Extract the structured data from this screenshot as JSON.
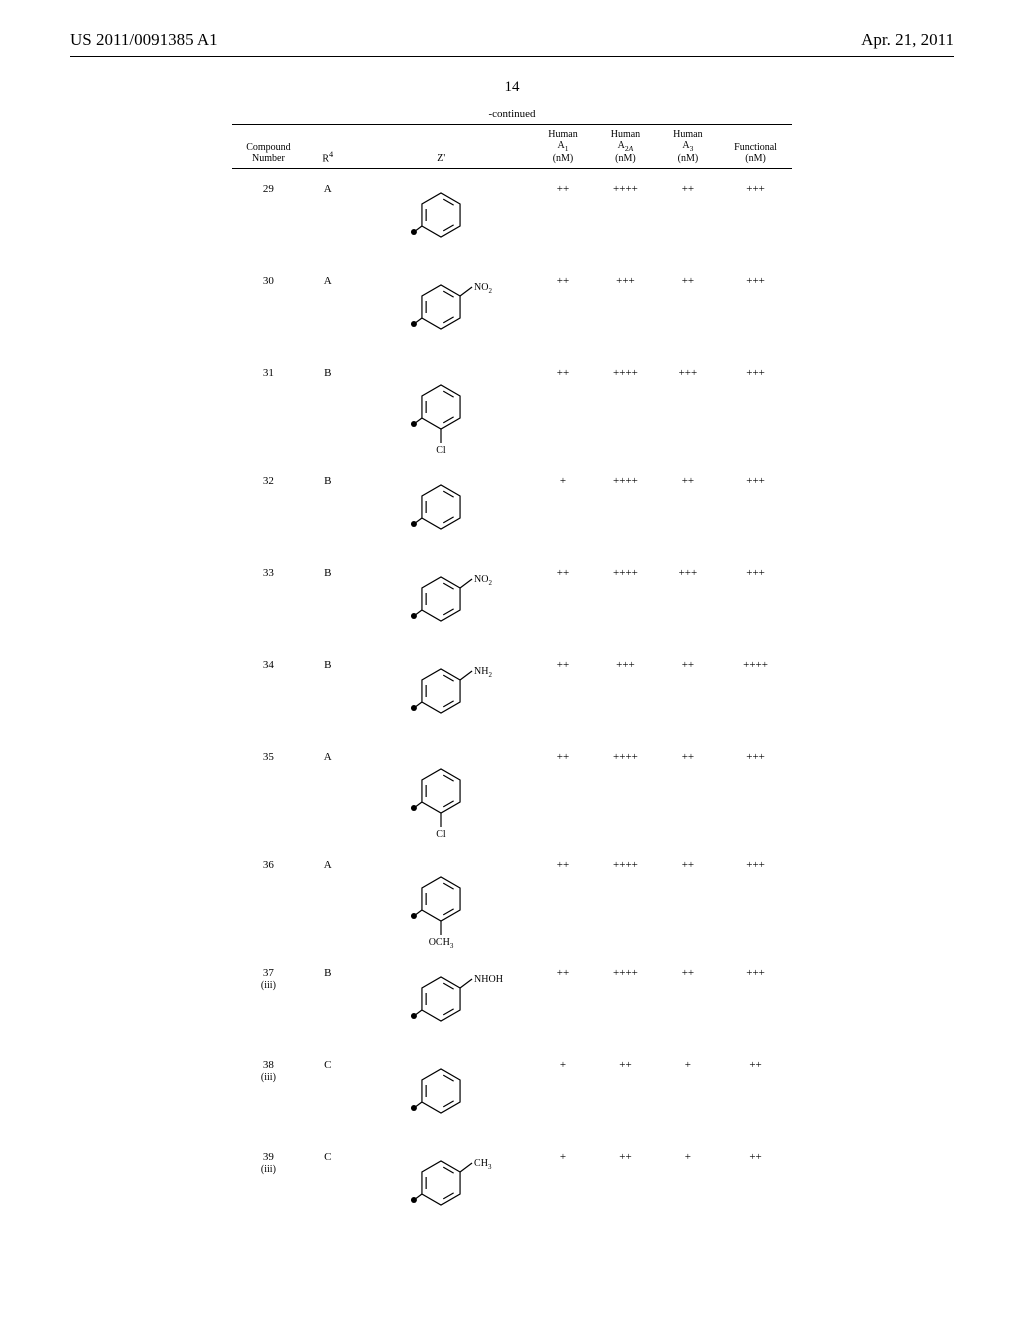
{
  "header": {
    "left": "US 2011/0091385 A1",
    "right": "Apr. 21, 2011"
  },
  "page_number": "14",
  "table": {
    "continued_label": "-continued",
    "columns": {
      "compound": "Compound\nNumber",
      "r4": "R⁴",
      "z": "Z'",
      "a1": "Human\nA₁\n(nM)",
      "a2a": "Human\nA₂ₐ\n(nM)",
      "a3": "Human\nA₃\n(nM)",
      "functional": "Functional\n(nM)"
    },
    "rows": [
      {
        "compound": "29",
        "sub": "",
        "r4": "A",
        "z_type": "phenyl",
        "z_sub": "",
        "z_subpos": "",
        "a1": "++",
        "a2a": "++++",
        "a3": "++",
        "func": "+++"
      },
      {
        "compound": "30",
        "sub": "",
        "r4": "A",
        "z_type": "phenyl",
        "z_sub": "NO₂",
        "z_subpos": "para",
        "a1": "++",
        "a2a": "+++",
        "a3": "++",
        "func": "+++"
      },
      {
        "compound": "31",
        "sub": "",
        "r4": "B",
        "z_type": "phenyl",
        "z_sub": "Cl",
        "z_subpos": "ortho",
        "a1": "++",
        "a2a": "++++",
        "a3": "+++",
        "func": "+++"
      },
      {
        "compound": "32",
        "sub": "",
        "r4": "B",
        "z_type": "phenyl",
        "z_sub": "",
        "z_subpos": "",
        "a1": "+",
        "a2a": "++++",
        "a3": "++",
        "func": "+++"
      },
      {
        "compound": "33",
        "sub": "",
        "r4": "B",
        "z_type": "phenyl",
        "z_sub": "NO₂",
        "z_subpos": "para",
        "a1": "++",
        "a2a": "++++",
        "a3": "+++",
        "func": "+++"
      },
      {
        "compound": "34",
        "sub": "",
        "r4": "B",
        "z_type": "phenyl",
        "z_sub": "NH₂",
        "z_subpos": "para",
        "a1": "++",
        "a2a": "+++",
        "a3": "++",
        "func": "++++"
      },
      {
        "compound": "35",
        "sub": "",
        "r4": "A",
        "z_type": "phenyl",
        "z_sub": "Cl",
        "z_subpos": "ortho",
        "a1": "++",
        "a2a": "++++",
        "a3": "++",
        "func": "+++"
      },
      {
        "compound": "36",
        "sub": "",
        "r4": "A",
        "z_type": "phenyl",
        "z_sub": "OCH₃",
        "z_subpos": "ortho",
        "a1": "++",
        "a2a": "++++",
        "a3": "++",
        "func": "+++"
      },
      {
        "compound": "37",
        "sub": "(iii)",
        "r4": "B",
        "z_type": "phenyl",
        "z_sub": "NHOH",
        "z_subpos": "para",
        "a1": "++",
        "a2a": "++++",
        "a3": "++",
        "func": "+++"
      },
      {
        "compound": "38",
        "sub": "(iii)",
        "r4": "C",
        "z_type": "phenyl",
        "z_sub": "",
        "z_subpos": "",
        "a1": "+",
        "a2a": "++",
        "a3": "+",
        "func": "++"
      },
      {
        "compound": "39",
        "sub": "(iii)",
        "r4": "C",
        "z_type": "phenyl",
        "z_sub": "CH₃",
        "z_subpos": "para",
        "a1": "+",
        "a2a": "++",
        "a3": "+",
        "func": "++"
      }
    ]
  },
  "styling": {
    "background_color": "#ffffff",
    "text_color": "#000000",
    "rule_color": "#000000",
    "font_family": "Times New Roman",
    "header_fontsize": 17,
    "page_number_fontsize": 15,
    "table_fontsize": 11,
    "header_fontsize_table": 10
  },
  "chem_structure": {
    "bond_color": "#000000",
    "bond_width": 1.2,
    "dot_radius": 3,
    "hex_radius": 22,
    "label_fontsize": 10
  }
}
